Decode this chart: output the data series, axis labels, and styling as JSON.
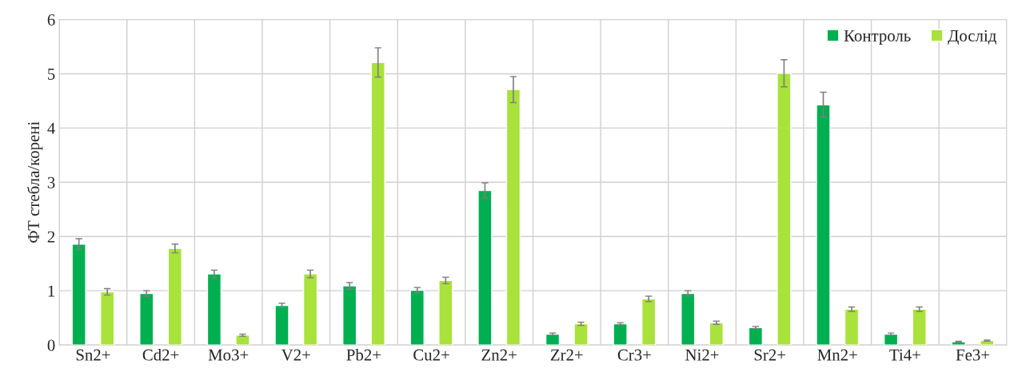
{
  "chart_data": {
    "type": "bar",
    "ylabel": "ФТ стебла/корені",
    "categories": [
      "Sn2+",
      "Cd2+",
      "Mo3+",
      "V2+",
      "Pb2+",
      "Cu2+",
      "Zn2+",
      "Zr2+",
      "Cr3+",
      "Ni2+",
      "Sr2+",
      "Mn2+",
      "Ti4+",
      "Fe3+"
    ],
    "series": [
      {
        "name": "Контроль",
        "color": "#00b050",
        "values": [
          1.86,
          0.95,
          1.31,
          0.73,
          1.09,
          1.01,
          2.85,
          0.2,
          0.39,
          0.95,
          0.32,
          4.43,
          0.2,
          0.06
        ],
        "errors": [
          0.1,
          0.05,
          0.07,
          0.04,
          0.06,
          0.05,
          0.14,
          0.02,
          0.02,
          0.05,
          0.02,
          0.23,
          0.02,
          0.01
        ]
      },
      {
        "name": "Дослід",
        "color": "#a9e23a",
        "values": [
          0.98,
          1.78,
          0.18,
          1.31,
          5.21,
          1.19,
          4.71,
          0.39,
          0.85,
          0.41,
          5.01,
          0.66,
          0.66,
          0.08
        ],
        "errors": [
          0.06,
          0.08,
          0.02,
          0.07,
          0.27,
          0.06,
          0.24,
          0.03,
          0.05,
          0.03,
          0.25,
          0.04,
          0.04,
          0.01
        ]
      }
    ],
    "ylim": [
      0,
      6
    ],
    "yticks": [
      0,
      1,
      2,
      3,
      4,
      5,
      6
    ],
    "grid": true,
    "legend": "top right"
  }
}
